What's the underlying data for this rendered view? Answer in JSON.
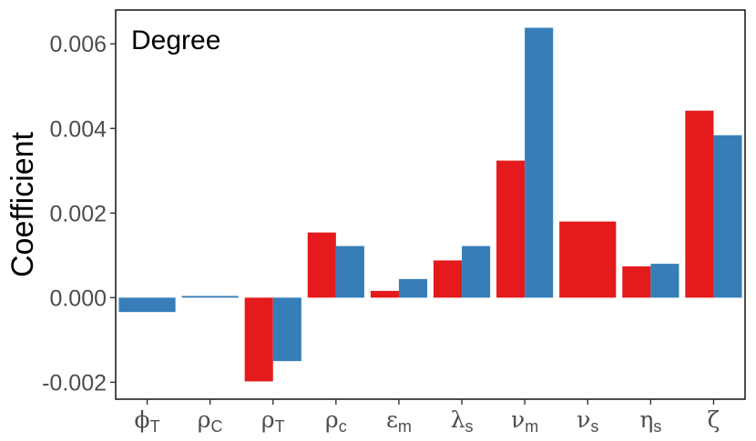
{
  "chart_data": {
    "type": "bar",
    "layout": "grouped",
    "panel_label": "Degree",
    "xlabel": "",
    "ylabel": "Coefficient",
    "ylim": [
      -0.0024,
      0.0068
    ],
    "yticks": [
      -0.002,
      0.0,
      0.002,
      0.004,
      0.006
    ],
    "ytick_labels": [
      "-0.002",
      "0.000",
      "0.002",
      "0.004",
      "0.006"
    ],
    "grid": false,
    "categories": [
      {
        "symbol": "ϕ",
        "sub": "T"
      },
      {
        "symbol": "ρ",
        "sub": "C"
      },
      {
        "symbol": "ρ",
        "sub": "T"
      },
      {
        "symbol": "ρ",
        "sub": "c"
      },
      {
        "symbol": "ε",
        "sub": "m"
      },
      {
        "symbol": "λ",
        "sub": "s"
      },
      {
        "symbol": "ν",
        "sub": "m"
      },
      {
        "symbol": "ν",
        "sub": "s"
      },
      {
        "symbol": "η",
        "sub": "s"
      },
      {
        "symbol": "ζ",
        "sub": ""
      }
    ],
    "series": [
      {
        "color": "#e41a1c",
        "values": [
          null,
          null,
          -0.00198,
          0.00154,
          0.00016,
          0.00088,
          0.00324,
          0.0018,
          0.00074,
          0.00442
        ]
      },
      {
        "color": "#377eb8",
        "values": [
          -0.00034,
          4e-05,
          -0.0015,
          0.00122,
          0.00044,
          0.00122,
          0.00638,
          null,
          0.0008,
          0.00384
        ]
      }
    ],
    "merge_when_single": true
  }
}
